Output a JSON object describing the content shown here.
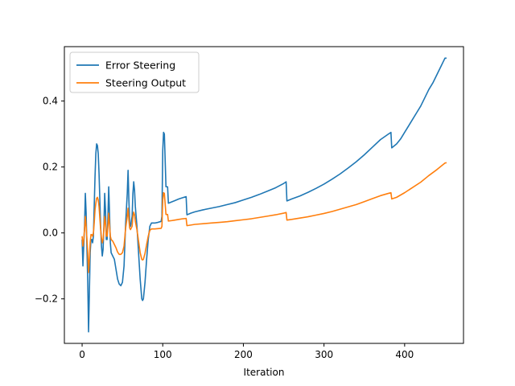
{
  "chart_data": {
    "type": "line",
    "title": "",
    "xlabel": "Iteration",
    "ylabel": "",
    "xlim": [
      -22,
      473
    ],
    "ylim": [
      -0.335,
      0.565
    ],
    "x_ticks": [
      0,
      100,
      200,
      300,
      400
    ],
    "x_tick_labels": [
      "0",
      "100",
      "200",
      "300",
      "400"
    ],
    "y_ticks": [
      -0.2,
      0.0,
      0.2,
      0.4
    ],
    "y_tick_labels": [
      "−0.2",
      "0.0",
      "0.2",
      "0.4"
    ],
    "grid": false,
    "legend": "top-left",
    "series": [
      {
        "name": "Error Steering",
        "color": "#1f77b4",
        "points": [
          [
            0,
            -0.02
          ],
          [
            1,
            -0.1
          ],
          [
            2,
            -0.04
          ],
          [
            3,
            0.02
          ],
          [
            4,
            0.12
          ],
          [
            5,
            0.06
          ],
          [
            6,
            -0.05
          ],
          [
            7,
            -0.15
          ],
          [
            8,
            -0.3
          ],
          [
            9,
            -0.18
          ],
          [
            10,
            -0.06
          ],
          [
            11,
            -0.02
          ],
          [
            12,
            -0.02
          ],
          [
            13,
            -0.03
          ],
          [
            14,
            -0.01
          ],
          [
            15,
            0.08
          ],
          [
            16,
            0.17
          ],
          [
            17,
            0.24
          ],
          [
            18,
            0.27
          ],
          [
            19,
            0.265
          ],
          [
            20,
            0.24
          ],
          [
            21,
            0.18
          ],
          [
            22,
            0.1
          ],
          [
            23,
            0.02
          ],
          [
            24,
            -0.04
          ],
          [
            25,
            -0.07
          ],
          [
            26,
            -0.05
          ],
          [
            27,
            0.02
          ],
          [
            28,
            0.12
          ],
          [
            29,
            0.07
          ],
          [
            30,
            -0.02
          ],
          [
            31,
            -0.02
          ],
          [
            32,
            0.05
          ],
          [
            33,
            0.14
          ],
          [
            34,
            0.06
          ],
          [
            35,
            -0.03
          ],
          [
            36,
            -0.06
          ],
          [
            38,
            -0.07
          ],
          [
            40,
            -0.08
          ],
          [
            42,
            -0.11
          ],
          [
            44,
            -0.14
          ],
          [
            46,
            -0.155
          ],
          [
            48,
            -0.16
          ],
          [
            50,
            -0.15
          ],
          [
            52,
            -0.1
          ],
          [
            54,
            0.03
          ],
          [
            56,
            0.12
          ],
          [
            57,
            0.19
          ],
          [
            58,
            0.1
          ],
          [
            59,
            0.03
          ],
          [
            60,
            0.02
          ],
          [
            62,
            0.05
          ],
          [
            63,
            0.12
          ],
          [
            64,
            0.155
          ],
          [
            65,
            0.13
          ],
          [
            66,
            0.08
          ],
          [
            68,
            0.02
          ],
          [
            70,
            -0.06
          ],
          [
            72,
            -0.14
          ],
          [
            74,
            -0.2
          ],
          [
            75,
            -0.205
          ],
          [
            76,
            -0.2
          ],
          [
            78,
            -0.15
          ],
          [
            80,
            -0.08
          ],
          [
            82,
            -0.02
          ],
          [
            84,
            0.02
          ],
          [
            86,
            0.03
          ],
          [
            90,
            0.03
          ],
          [
            94,
            0.032
          ],
          [
            98,
            0.035
          ],
          [
            99,
            0.05
          ],
          [
            100,
            0.25
          ],
          [
            101,
            0.305
          ],
          [
            102,
            0.3
          ],
          [
            103,
            0.22
          ],
          [
            104,
            0.14
          ],
          [
            106,
            0.14
          ],
          [
            107,
            0.09
          ],
          [
            110,
            0.093
          ],
          [
            115,
            0.098
          ],
          [
            120,
            0.103
          ],
          [
            125,
            0.107
          ],
          [
            129,
            0.11
          ],
          [
            130,
            0.055
          ],
          [
            135,
            0.06
          ],
          [
            140,
            0.064
          ],
          [
            150,
            0.07
          ],
          [
            160,
            0.075
          ],
          [
            170,
            0.08
          ],
          [
            180,
            0.086
          ],
          [
            190,
            0.092
          ],
          [
            200,
            0.1
          ],
          [
            210,
            0.108
          ],
          [
            220,
            0.117
          ],
          [
            230,
            0.127
          ],
          [
            240,
            0.137
          ],
          [
            250,
            0.15
          ],
          [
            253,
            0.155
          ],
          [
            254,
            0.097
          ],
          [
            260,
            0.103
          ],
          [
            270,
            0.112
          ],
          [
            280,
            0.123
          ],
          [
            290,
            0.135
          ],
          [
            300,
            0.148
          ],
          [
            310,
            0.163
          ],
          [
            320,
            0.179
          ],
          [
            330,
            0.197
          ],
          [
            340,
            0.216
          ],
          [
            350,
            0.237
          ],
          [
            360,
            0.26
          ],
          [
            370,
            0.283
          ],
          [
            380,
            0.3
          ],
          [
            383,
            0.305
          ],
          [
            384,
            0.258
          ],
          [
            390,
            0.27
          ],
          [
            395,
            0.285
          ],
          [
            400,
            0.305
          ],
          [
            405,
            0.325
          ],
          [
            410,
            0.345
          ],
          [
            415,
            0.365
          ],
          [
            420,
            0.385
          ],
          [
            425,
            0.41
          ],
          [
            430,
            0.435
          ],
          [
            435,
            0.455
          ],
          [
            440,
            0.48
          ],
          [
            445,
            0.505
          ],
          [
            448,
            0.52
          ],
          [
            450,
            0.53
          ],
          [
            452,
            0.53
          ]
        ]
      },
      {
        "name": "Steering Output",
        "color": "#ff7f0e",
        "points": [
          [
            0,
            -0.01
          ],
          [
            1,
            -0.04
          ],
          [
            2,
            -0.02
          ],
          [
            3,
            0.01
          ],
          [
            4,
            0.05
          ],
          [
            5,
            0.02
          ],
          [
            6,
            -0.02
          ],
          [
            7,
            -0.06
          ],
          [
            8,
            -0.12
          ],
          [
            9,
            -0.08
          ],
          [
            10,
            -0.03
          ],
          [
            11,
            -0.005
          ],
          [
            12,
            -0.005
          ],
          [
            13,
            -0.01
          ],
          [
            14,
            0.0
          ],
          [
            15,
            0.03
          ],
          [
            16,
            0.07
          ],
          [
            17,
            0.09
          ],
          [
            18,
            0.105
          ],
          [
            19,
            0.108
          ],
          [
            20,
            0.1
          ],
          [
            21,
            0.08
          ],
          [
            22,
            0.045
          ],
          [
            23,
            0.01
          ],
          [
            24,
            -0.015
          ],
          [
            25,
            -0.03
          ],
          [
            26,
            -0.02
          ],
          [
            27,
            0.01
          ],
          [
            28,
            0.05
          ],
          [
            29,
            0.03
          ],
          [
            30,
            -0.01
          ],
          [
            31,
            -0.01
          ],
          [
            32,
            0.02
          ],
          [
            33,
            0.06
          ],
          [
            34,
            0.025
          ],
          [
            35,
            -0.01
          ],
          [
            36,
            -0.02
          ],
          [
            38,
            -0.025
          ],
          [
            40,
            -0.035
          ],
          [
            42,
            -0.045
          ],
          [
            44,
            -0.058
          ],
          [
            46,
            -0.065
          ],
          [
            48,
            -0.065
          ],
          [
            50,
            -0.06
          ],
          [
            52,
            -0.04
          ],
          [
            54,
            0.015
          ],
          [
            56,
            0.05
          ],
          [
            57,
            0.075
          ],
          [
            58,
            0.04
          ],
          [
            59,
            0.015
          ],
          [
            60,
            0.01
          ],
          [
            62,
            0.02
          ],
          [
            63,
            0.05
          ],
          [
            64,
            0.063
          ],
          [
            65,
            0.055
          ],
          [
            66,
            0.035
          ],
          [
            68,
            0.01
          ],
          [
            70,
            -0.025
          ],
          [
            72,
            -0.06
          ],
          [
            74,
            -0.08
          ],
          [
            75,
            -0.082
          ],
          [
            76,
            -0.08
          ],
          [
            78,
            -0.062
          ],
          [
            80,
            -0.035
          ],
          [
            82,
            -0.01
          ],
          [
            84,
            0.008
          ],
          [
            86,
            0.012
          ],
          [
            90,
            0.012
          ],
          [
            94,
            0.013
          ],
          [
            98,
            0.014
          ],
          [
            99,
            0.02
          ],
          [
            100,
            0.1
          ],
          [
            101,
            0.122
          ],
          [
            102,
            0.12
          ],
          [
            103,
            0.088
          ],
          [
            104,
            0.056
          ],
          [
            106,
            0.056
          ],
          [
            107,
            0.036
          ],
          [
            110,
            0.037
          ],
          [
            115,
            0.039
          ],
          [
            120,
            0.041
          ],
          [
            125,
            0.043
          ],
          [
            129,
            0.044
          ],
          [
            130,
            0.022
          ],
          [
            140,
            0.026
          ],
          [
            150,
            0.028
          ],
          [
            160,
            0.03
          ],
          [
            170,
            0.032
          ],
          [
            180,
            0.034
          ],
          [
            190,
            0.037
          ],
          [
            200,
            0.04
          ],
          [
            210,
            0.043
          ],
          [
            220,
            0.047
          ],
          [
            230,
            0.051
          ],
          [
            240,
            0.055
          ],
          [
            250,
            0.06
          ],
          [
            253,
            0.062
          ],
          [
            254,
            0.039
          ],
          [
            260,
            0.041
          ],
          [
            270,
            0.045
          ],
          [
            280,
            0.049
          ],
          [
            290,
            0.054
          ],
          [
            300,
            0.059
          ],
          [
            310,
            0.065
          ],
          [
            320,
            0.072
          ],
          [
            330,
            0.079
          ],
          [
            340,
            0.086
          ],
          [
            350,
            0.095
          ],
          [
            360,
            0.104
          ],
          [
            370,
            0.113
          ],
          [
            380,
            0.12
          ],
          [
            383,
            0.122
          ],
          [
            384,
            0.103
          ],
          [
            390,
            0.108
          ],
          [
            400,
            0.122
          ],
          [
            410,
            0.138
          ],
          [
            420,
            0.154
          ],
          [
            430,
            0.174
          ],
          [
            440,
            0.192
          ],
          [
            448,
            0.208
          ],
          [
            450,
            0.212
          ],
          [
            452,
            0.213
          ]
        ]
      }
    ]
  }
}
